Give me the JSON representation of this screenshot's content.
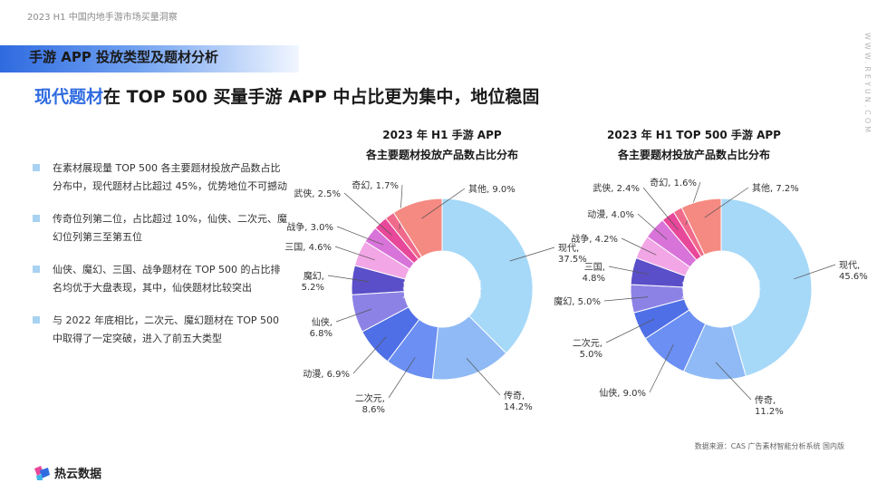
{
  "header": {
    "doc_title": "2023 H1 中国内地手游市场买量洞察",
    "section_title": "手游 APP 投放类型及题材分析",
    "headline_highlight": "现代题材",
    "headline_rest": "在 TOP 500 买量手游 APP 中占比更为集中，地位稳固",
    "side_url": "WWW.REYUN.COM"
  },
  "bullets": [
    "在素材展现量 TOP 500 各主要题材投放产品数占比分布中，现代题材占比超过 45%，优势地位不可撼动",
    "传奇位列第二位，占比超过 10%，仙侠、二次元、魔幻位列第三至第五位",
    "仙侠、魔幻、三国、战争题材在 TOP 500 的占比排名均优于大盘表现，其中，仙侠题材比较突出",
    "与 2022 年底相比，二次元、魔幻题材在 TOP 500 中取得了一定突破，进入了前五大类型"
  ],
  "chart_data": [
    {
      "type": "pie",
      "title_line1": "2023 年 H1 手游 APP",
      "title_line2": "各主要题材投放产品数占比分布",
      "unit": "%",
      "slices": [
        {
          "label": "现代",
          "value": 37.5,
          "color": "#a6d8f8",
          "text_lines": [
            "现代,",
            "37.5%"
          ]
        },
        {
          "label": "传奇",
          "value": 14.2,
          "color": "#8fbaf5",
          "text_lines": [
            "传奇,",
            "14.2%"
          ]
        },
        {
          "label": "二次元",
          "value": 8.6,
          "color": "#6b8ff2",
          "text_lines": [
            "二次元,",
            "8.6%"
          ]
        },
        {
          "label": "动漫",
          "value": 6.9,
          "color": "#4f6fe6",
          "text_lines": [
            "动漫, 6.9%"
          ]
        },
        {
          "label": "仙侠",
          "value": 6.8,
          "color": "#8c82e6",
          "text_lines": [
            "仙侠,",
            "6.8%"
          ]
        },
        {
          "label": "魔幻",
          "value": 5.2,
          "color": "#5a4fc8",
          "text_lines": [
            "魔幻,",
            "5.2%"
          ]
        },
        {
          "label": "三国",
          "value": 4.6,
          "color": "#f2a6e6",
          "text_lines": [
            "三国, 4.6%"
          ]
        },
        {
          "label": "战争",
          "value": 3.0,
          "color": "#d873d9",
          "text_lines": [
            "战争, 3.0%"
          ]
        },
        {
          "label": "武侠",
          "value": 2.5,
          "color": "#e8489a",
          "text_lines": [
            "武侠, 2.5%"
          ]
        },
        {
          "label": "奇幻",
          "value": 1.7,
          "color": "#f06a8c",
          "text_lines": [
            "奇幻, 1.7%"
          ]
        },
        {
          "label": "其他",
          "value": 9.0,
          "color": "#f58a82",
          "text_lines": [
            "其他, 9.0%"
          ]
        }
      ]
    },
    {
      "type": "pie",
      "title_line1": "2023 年 H1 TOP 500 手游 APP",
      "title_line2": "各主要题材投放产品数占比分布",
      "unit": "%",
      "slices": [
        {
          "label": "现代",
          "value": 45.6,
          "color": "#a6d8f8",
          "text_lines": [
            "现代,",
            "45.6%"
          ]
        },
        {
          "label": "传奇",
          "value": 11.2,
          "color": "#8fbaf5",
          "text_lines": [
            "传奇,",
            "11.2%"
          ]
        },
        {
          "label": "仙侠",
          "value": 9.0,
          "color": "#6b8ff2",
          "text_lines": [
            "仙侠, 9.0%"
          ]
        },
        {
          "label": "二次元",
          "value": 5.0,
          "color": "#4f6fe6",
          "text_lines": [
            "二次元,",
            "5.0%"
          ]
        },
        {
          "label": "魔幻",
          "value": 5.0,
          "color": "#8c82e6",
          "text_lines": [
            "魔幻, 5.0%"
          ]
        },
        {
          "label": "三国",
          "value": 4.8,
          "color": "#5a4fc8",
          "text_lines": [
            "三国,",
            "4.8%"
          ]
        },
        {
          "label": "战争",
          "value": 4.2,
          "color": "#f2a6e6",
          "text_lines": [
            "战争, 4.2%"
          ]
        },
        {
          "label": "动漫",
          "value": 4.0,
          "color": "#d873d9",
          "text_lines": [
            "动漫, 4.0%"
          ]
        },
        {
          "label": "武侠",
          "value": 2.4,
          "color": "#e8489a",
          "text_lines": [
            "武侠, 2.4%"
          ]
        },
        {
          "label": "奇幻",
          "value": 1.6,
          "color": "#f06a8c",
          "text_lines": [
            "奇幻, 1.6%"
          ]
        },
        {
          "label": "其他",
          "value": 7.2,
          "color": "#f58a82",
          "text_lines": [
            "其他, 7.2%"
          ]
        }
      ]
    }
  ],
  "footer": {
    "source": "数据来源：CAS 广告素材智能分析系统 国内版",
    "logo_text": "热云数据",
    "chart_watermark": "热云数据"
  }
}
